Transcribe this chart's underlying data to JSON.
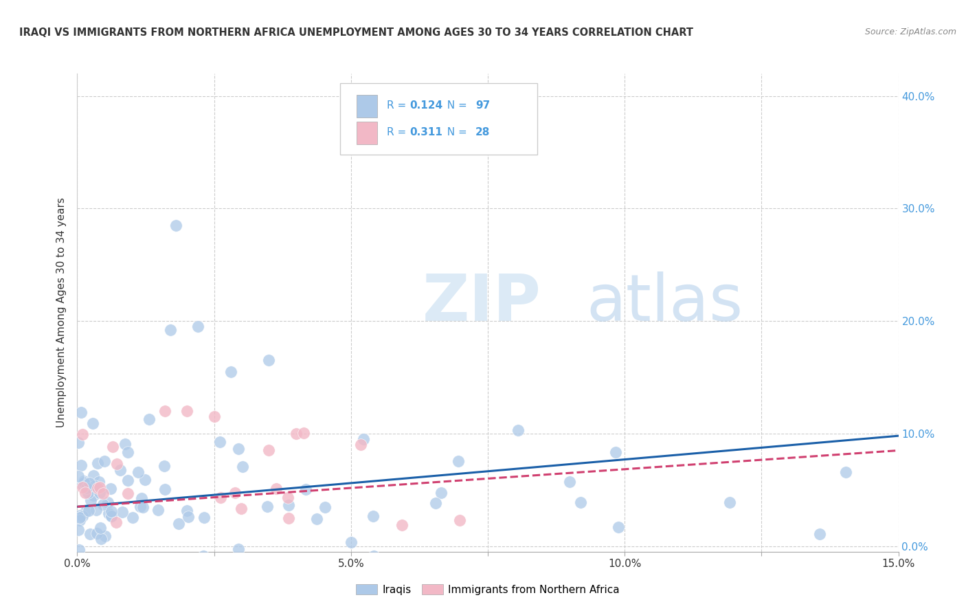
{
  "title": "IRAQI VS IMMIGRANTS FROM NORTHERN AFRICA UNEMPLOYMENT AMONG AGES 30 TO 34 YEARS CORRELATION CHART",
  "source": "Source: ZipAtlas.com",
  "ylabel_label": "Unemployment Among Ages 30 to 34 years",
  "legend_iraqis": "Iraqis",
  "legend_north_africa": "Immigrants from Northern Africa",
  "r_iraqis": "0.124",
  "n_iraqis": "97",
  "r_north_africa": "0.311",
  "n_north_africa": "28",
  "color_iraqis": "#adc9e8",
  "color_iraqis_line": "#1a5fa8",
  "color_north_africa": "#f2b8c6",
  "color_north_africa_line": "#d04070",
  "color_blue_text": "#4499dd",
  "color_dark_text": "#333333",
  "color_source": "#888888",
  "background": "#ffffff",
  "xlim": [
    0.0,
    0.15
  ],
  "ylim": [
    -0.005,
    0.42
  ],
  "x_ticks": [
    0.0,
    0.025,
    0.05,
    0.075,
    0.1,
    0.125,
    0.15
  ],
  "x_tick_labels": [
    "0.0%",
    "",
    "5.0%",
    "",
    "10.0%",
    "",
    "15.0%"
  ],
  "y_ticks": [
    0.0,
    0.1,
    0.2,
    0.3,
    0.4
  ],
  "y_tick_labels": [
    "0.0%",
    "10.0%",
    "20.0%",
    "30.0%",
    "40.0%"
  ],
  "watermark_zip": "ZIP",
  "watermark_atlas": "atlas",
  "trend_iraq_start": 0.035,
  "trend_iraq_end": 0.098,
  "trend_na_start": 0.035,
  "trend_na_end": 0.085
}
